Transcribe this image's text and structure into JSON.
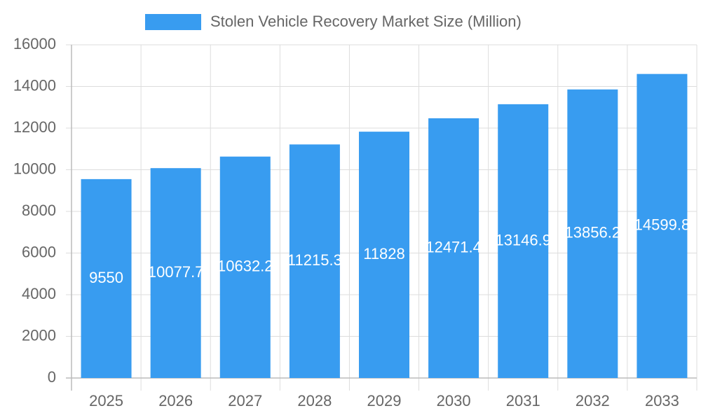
{
  "chart_data": {
    "type": "bar",
    "categories": [
      "2025",
      "2026",
      "2027",
      "2028",
      "2029",
      "2030",
      "2031",
      "2032",
      "2033"
    ],
    "series": [
      {
        "name": "Stolen Vehicle Recovery Market Size (Million)",
        "color": "#389cf0",
        "values": [
          9550,
          10077.7,
          10632.2,
          11215.3,
          11828,
          12471.4,
          13146.9,
          13856.2,
          14599.8
        ]
      }
    ],
    "ylim": [
      0,
      16000
    ],
    "yticks": [
      0,
      2000,
      4000,
      6000,
      8000,
      10000,
      12000,
      14000,
      16000
    ],
    "grid": true,
    "legend": "top"
  }
}
